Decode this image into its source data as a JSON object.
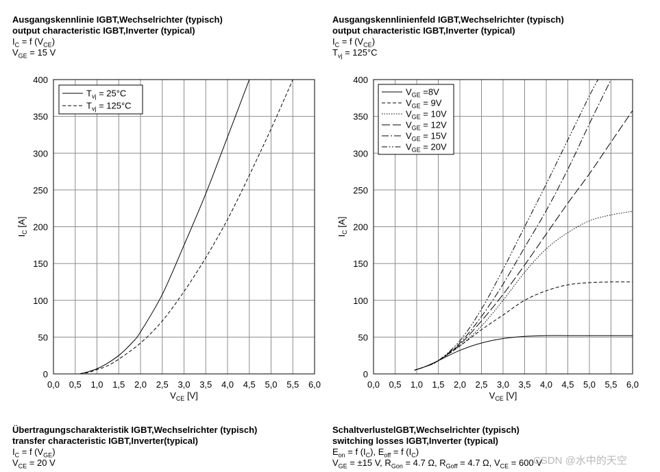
{
  "headers": {
    "top_left": {
      "title_de": "Ausgangskennlinie IGBT,Wechselrichter (typisch)",
      "title_en": "output characteristic IGBT,Inverter (typical)",
      "line3": {
        "a": "I",
        "a_sub": "C",
        "b": " = f (V",
        "b_sub": "CE",
        "c": ")"
      },
      "line4": {
        "a": "V",
        "a_sub": "GE",
        "b": " = 15 V"
      }
    },
    "top_right": {
      "title_de": "Ausgangskennlinienfeld IGBT,Wechselrichter (typisch)",
      "title_en": "output characteristic IGBT,Inverter (typical)",
      "line3": {
        "a": "I",
        "a_sub": "C",
        "b": " = f (V",
        "b_sub": "CE",
        "c": ")"
      },
      "line4": {
        "a": "T",
        "a_sub": "vj",
        "b": " = 125°C"
      }
    },
    "bottom_left": {
      "title_de": "Übertragungscharakteristik IGBT,Wechselrichter (typisch)",
      "title_en": "transfer characteristic  IGBT,Inverter(typical)",
      "line3": {
        "a": "I",
        "a_sub": "C",
        "b": " = f (V",
        "b_sub": "GE",
        "c": ")"
      },
      "line4": {
        "a": "V",
        "a_sub": "CE",
        "b": " = 20 V"
      }
    },
    "bottom_right": {
      "title_de": "SchaltverlustelGBT,Wechselrichter (typisch)",
      "title_en": "switching losses  IGBT,Inverter (typical)",
      "line3": {
        "a": "E",
        "a_sub": "on",
        "b": " = f (I",
        "b_sub": "C",
        "c": "), E",
        "c_sub": "off",
        "d": " = f (I",
        "d_sub": "C",
        "e": ")"
      },
      "line4": {
        "a": "V",
        "a_sub": "GE",
        "b": " = ±15 V, R",
        "b_sub": "Gon",
        "c": " = 4.7 Ω, R",
        "c_sub": "Goff",
        "d": " = 4.7 Ω, V",
        "d_sub": "CE",
        "e": " = 600 V"
      }
    }
  },
  "watermark": "CSDN @水中的天空",
  "chart_data": [
    {
      "type": "line",
      "title": "output characteristic IGBT,Inverter (typical)",
      "xlabel": {
        "main": "V",
        "sub": "CE",
        "unit": " [V]"
      },
      "ylabel": {
        "main": "I",
        "sub": "C",
        "unit": " [A]"
      },
      "xlim": [
        0,
        6
      ],
      "ylim": [
        0,
        400
      ],
      "x_ticks": [
        0,
        0.5,
        1,
        1.5,
        2,
        2.5,
        3,
        3.5,
        4,
        4.5,
        5,
        5.5,
        6
      ],
      "x_tick_labels": [
        "0,0",
        "0,5",
        "1,0",
        "1,5",
        "2,0",
        "2,5",
        "3,0",
        "3,5",
        "4,0",
        "4,5",
        "5,0",
        "5,5",
        "6,0"
      ],
      "y_ticks": [
        0,
        50,
        100,
        150,
        200,
        250,
        300,
        350,
        400
      ],
      "y_tick_labels": [
        "0",
        "50",
        "100",
        "150",
        "200",
        "250",
        "300",
        "350",
        "400"
      ],
      "grid": true,
      "legend_position": "top-left",
      "series": [
        {
          "name": "T",
          "name_sub": "vj",
          "name_suffix": " = 25°C",
          "dash": "solid",
          "x": [
            0.6,
            0.8,
            1.0,
            1.2,
            1.5,
            1.8,
            2.0,
            2.5,
            3.0,
            3.5,
            4.0,
            4.5
          ],
          "y": [
            0,
            3,
            7,
            13,
            25,
            42,
            57,
            108,
            175,
            245,
            322,
            400
          ]
        },
        {
          "name": "T",
          "name_sub": "vj",
          "name_suffix": " = 125°C",
          "dash": "dash",
          "x": [
            0.6,
            0.8,
            1.0,
            1.2,
            1.5,
            2.0,
            2.5,
            3.0,
            3.5,
            4.0,
            4.5,
            5.0,
            5.5
          ],
          "y": [
            0,
            2,
            6,
            10,
            20,
            42,
            72,
            112,
            158,
            210,
            270,
            333,
            400
          ]
        }
      ]
    },
    {
      "type": "line",
      "title": "output characteristic IGBT,Inverter (typical)",
      "xlabel": {
        "main": "V",
        "sub": "CE",
        "unit": " [V]"
      },
      "ylabel": {
        "main": "I",
        "sub": "C",
        "unit": " [A]"
      },
      "xlim": [
        0,
        6
      ],
      "ylim": [
        0,
        400
      ],
      "x_ticks": [
        0,
        0.5,
        1,
        1.5,
        2,
        2.5,
        3,
        3.5,
        4,
        4.5,
        5,
        5.5,
        6
      ],
      "x_tick_labels": [
        "0,0",
        "0,5",
        "1,0",
        "1,5",
        "2,0",
        "2,5",
        "3,0",
        "3,5",
        "4,0",
        "4,5",
        "5,0",
        "5,5",
        "6,0"
      ],
      "y_ticks": [
        0,
        50,
        100,
        150,
        200,
        250,
        300,
        350,
        400
      ],
      "y_tick_labels": [
        "0",
        "50",
        "100",
        "150",
        "200",
        "250",
        "300",
        "350",
        "400"
      ],
      "grid": true,
      "legend_position": "top-left",
      "series": [
        {
          "name": "V",
          "name_sub": "GE",
          "name_suffix": " =8V",
          "dash": "solid",
          "x": [
            0.95,
            1.2,
            1.5,
            2.0,
            2.5,
            3.0,
            3.5,
            4.0,
            4.5,
            5.0,
            6.0
          ],
          "y": [
            5,
            10,
            18,
            32,
            42,
            48,
            51,
            52,
            52,
            52,
            52
          ]
        },
        {
          "name": "V",
          "name_sub": "GE",
          "name_suffix": " = 9V",
          "dash": "dash",
          "x": [
            0.95,
            1.2,
            1.5,
            2.0,
            2.5,
            3.0,
            3.5,
            4.0,
            4.5,
            5.0,
            5.5,
            6.0
          ],
          "y": [
            5,
            10,
            18,
            38,
            60,
            80,
            100,
            113,
            121,
            124,
            125,
            125
          ]
        },
        {
          "name": "V",
          "name_sub": "GE",
          "name_suffix": " = 10V",
          "dash": "dot",
          "x": [
            0.95,
            1.2,
            1.5,
            2.0,
            2.5,
            3.0,
            3.5,
            4.0,
            4.5,
            5.0,
            5.5,
            6.0
          ],
          "y": [
            5,
            10,
            18,
            38,
            65,
            100,
            138,
            170,
            192,
            208,
            216,
            221
          ]
        },
        {
          "name": "V",
          "name_sub": "GE",
          "name_suffix": " = 12V",
          "dash": "longdash",
          "x": [
            0.95,
            1.2,
            1.5,
            2.0,
            2.5,
            3.0,
            3.5,
            4.0,
            4.5,
            5.0,
            5.5,
            6.0
          ],
          "y": [
            5,
            10,
            18,
            40,
            72,
            108,
            148,
            190,
            232,
            272,
            315,
            358
          ]
        },
        {
          "name": "V",
          "name_sub": "GE",
          "name_suffix": " = 15V",
          "dash": "dashdot",
          "x": [
            0.95,
            1.2,
            1.5,
            2.0,
            2.5,
            3.0,
            3.5,
            4.0,
            4.5,
            5.0,
            5.5
          ],
          "y": [
            5,
            10,
            18,
            42,
            78,
            122,
            172,
            222,
            278,
            340,
            400
          ]
        },
        {
          "name": "V",
          "name_sub": "GE",
          "name_suffix": " = 20V",
          "dash": "dashdotdot",
          "x": [
            0.95,
            1.2,
            1.5,
            2.0,
            2.5,
            3.0,
            3.5,
            4.0,
            4.5,
            5.0,
            5.2
          ],
          "y": [
            5,
            10,
            18,
            45,
            88,
            142,
            200,
            258,
            318,
            378,
            400
          ]
        }
      ]
    }
  ]
}
